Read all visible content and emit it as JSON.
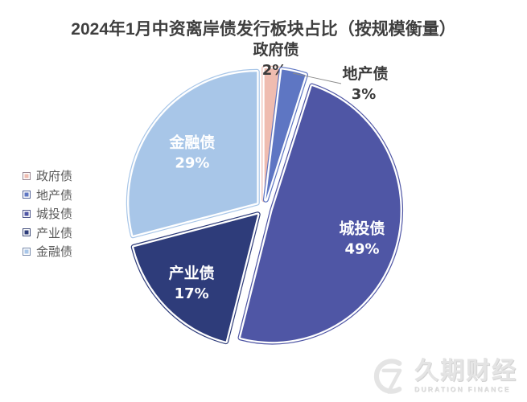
{
  "chart_data": {
    "type": "pie",
    "title": "2024年1月中资离岸债发行板块占比（按规模衡量）",
    "unit": "%",
    "direction": "clockwise",
    "start_angle_deg": 0,
    "exploded": true,
    "legend_position": "left",
    "slices": [
      {
        "label": "政府债",
        "value": 2,
        "pct_label": "2%",
        "color": "#EFBCB0",
        "label_placement": "outside"
      },
      {
        "label": "地产债",
        "value": 3,
        "pct_label": "3%",
        "color": "#5E76C3",
        "label_placement": "outside"
      },
      {
        "label": "城投债",
        "value": 49,
        "pct_label": "49%",
        "color": "#4F56A5",
        "label_placement": "inside"
      },
      {
        "label": "产业债",
        "value": 17,
        "pct_label": "17%",
        "color": "#2E3C7A",
        "label_placement": "inside"
      },
      {
        "label": "金融债",
        "value": 29,
        "pct_label": "29%",
        "color": "#A8C6E8",
        "label_placement": "inside"
      }
    ]
  },
  "watermark": {
    "logo": "C7-logo",
    "name": "久期财经",
    "subtitle": "DURATION FINANCE"
  }
}
